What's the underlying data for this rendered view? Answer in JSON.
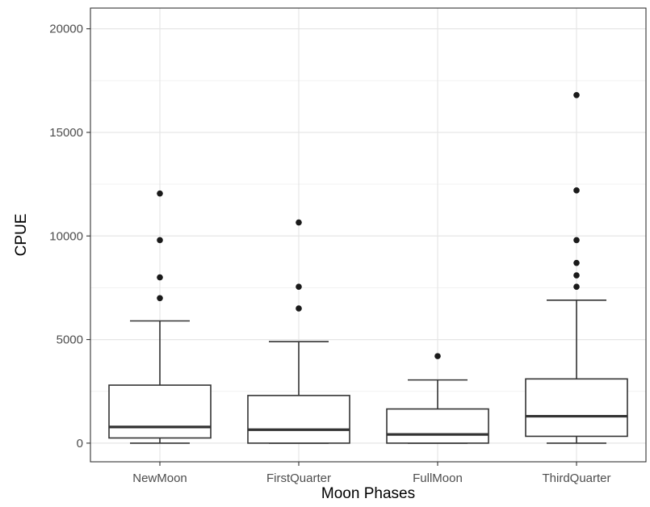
{
  "chart_data": {
    "type": "boxplot",
    "title": "",
    "xlabel": "Moon Phases",
    "ylabel": "CPUE",
    "ylim": [
      -900,
      21000
    ],
    "yticks": [
      0,
      5000,
      10000,
      15000,
      20000
    ],
    "ytick_labels": [
      "0",
      "5000",
      "10000",
      "15000",
      "20000"
    ],
    "grid": true,
    "legend": "none",
    "categories": [
      "NewMoon",
      "FirstQuarter",
      "FullMoon",
      "ThirdQuarter"
    ],
    "boxes": [
      {
        "category": "NewMoon",
        "whisker_low": 0,
        "q1": 250,
        "median": 780,
        "q3": 2800,
        "whisker_high": 5900,
        "outliers": [
          7000,
          8000,
          9800,
          12050
        ]
      },
      {
        "category": "FirstQuarter",
        "whisker_low": 0,
        "q1": 0,
        "median": 650,
        "q3": 2300,
        "whisker_high": 4900,
        "outliers": [
          6500,
          7550,
          10650
        ]
      },
      {
        "category": "FullMoon",
        "whisker_low": 0,
        "q1": 0,
        "median": 420,
        "q3": 1650,
        "whisker_high": 3050,
        "outliers": [
          4200
        ]
      },
      {
        "category": "ThirdQuarter",
        "whisker_low": 0,
        "q1": 330,
        "median": 1300,
        "q3": 3100,
        "whisker_high": 6900,
        "outliers": [
          7550,
          8100,
          8700,
          9800,
          12200,
          16800
        ]
      }
    ]
  }
}
